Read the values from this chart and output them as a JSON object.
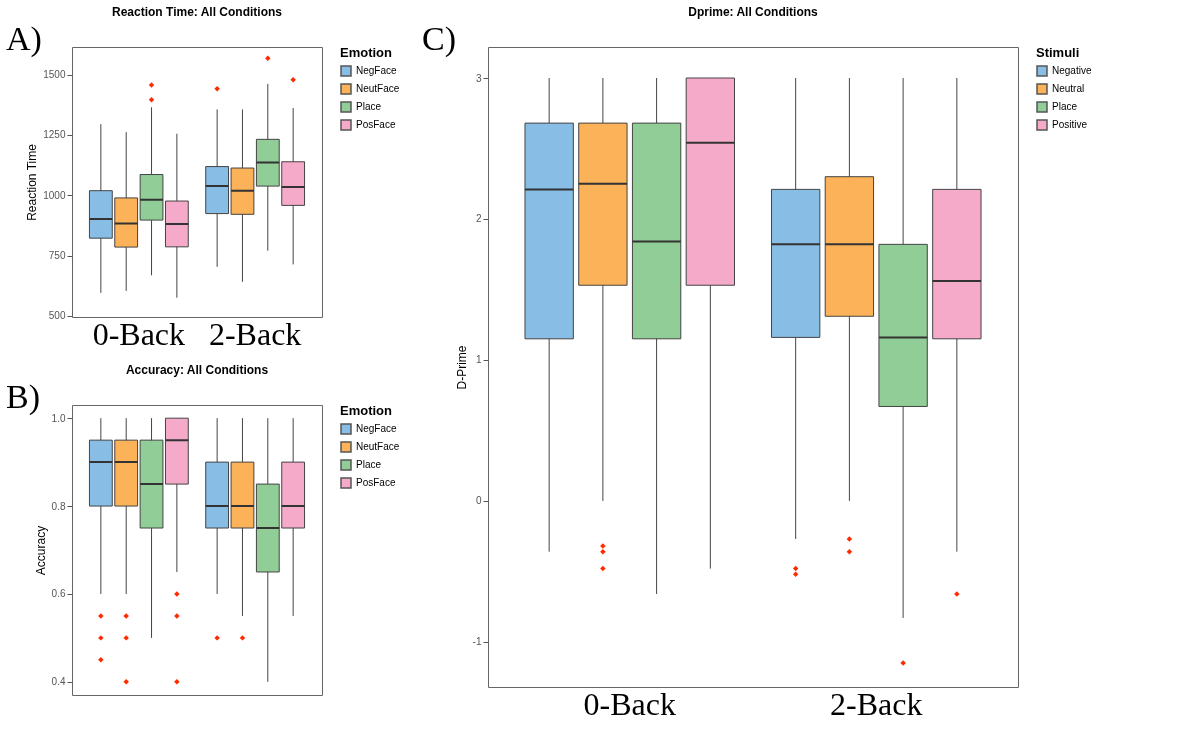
{
  "chart_data": [
    {
      "type": "box",
      "title": "Reaction Time: All Conditions",
      "ylabel": "Reaction Time",
      "legend_title": "Emotion",
      "legend": "right",
      "grid": false,
      "marker": "diamond",
      "annotations": [
        "A)"
      ],
      "categories": [
        "0-Back",
        "2-Back"
      ],
      "ylim": [
        495,
        1615
      ],
      "yticks": [
        500,
        750,
        1000,
        1250,
        1500
      ],
      "series": [
        {
          "name": "NegFace",
          "color": "#88bde6",
          "boxes": [
            {
              "low": 595,
              "q1": 822,
              "median": 902,
              "q3": 1019,
              "high": 1295
            },
            {
              "low": 703,
              "q1": 924,
              "median": 1038,
              "q3": 1119,
              "high": 1356,
              "outliers": [
                1442
              ]
            }
          ]
        },
        {
          "name": "NeutFace",
          "color": "#fbb258",
          "boxes": [
            {
              "low": 603,
              "q1": 785,
              "median": 883,
              "q3": 989,
              "high": 1262
            },
            {
              "low": 641,
              "q1": 921,
              "median": 1019,
              "q3": 1113,
              "high": 1356
            }
          ]
        },
        {
          "name": "Place",
          "color": "#90cd97",
          "boxes": [
            {
              "low": 668,
              "q1": 897,
              "median": 981,
              "q3": 1086,
              "high": 1365,
              "outliers": [
                1396,
                1457
              ]
            },
            {
              "low": 770,
              "q1": 1038,
              "median": 1136,
              "q3": 1232,
              "high": 1462,
              "outliers": [
                1568
              ]
            }
          ]
        },
        {
          "name": "PosFace",
          "color": "#f6aac9",
          "boxes": [
            {
              "low": 575,
              "q1": 786,
              "median": 881,
              "q3": 976,
              "high": 1255
            },
            {
              "low": 713,
              "q1": 958,
              "median": 1034,
              "q3": 1139,
              "high": 1362,
              "outliers": [
                1479
              ]
            }
          ]
        }
      ]
    },
    {
      "type": "box",
      "title": "Accuracy: All Conditions",
      "ylabel": "Accuracy",
      "legend_title": "Emotion",
      "legend": "right",
      "grid": false,
      "marker": "diamond",
      "annotations": [
        "B)"
      ],
      "tick_labels": "y",
      "categories": [
        null,
        null
      ],
      "ylim": [
        0.37,
        1.03
      ],
      "yticks": [
        0.4,
        0.6,
        0.8,
        {
          "value": 1,
          "label": "1.0"
        }
      ],
      "series": [
        {
          "name": "NegFace",
          "color": "#88bde6",
          "boxes": [
            {
              "low": 0.6,
              "q1": 0.8,
              "median": 0.9,
              "q3": 0.95,
              "high": 1,
              "outliers": [
                0.55,
                0.5,
                0.45
              ]
            },
            {
              "low": 0.6,
              "q1": 0.75,
              "median": 0.8,
              "q3": 0.9,
              "high": 1,
              "outliers": [
                0.5
              ]
            }
          ]
        },
        {
          "name": "NeutFace",
          "color": "#fbb258",
          "boxes": [
            {
              "low": 0.6,
              "q1": 0.8,
              "median": 0.9,
              "q3": 0.95,
              "high": 1,
              "outliers": [
                0.55,
                0.5,
                0.4
              ]
            },
            {
              "low": 0.55,
              "q1": 0.75,
              "median": 0.8,
              "q3": 0.9,
              "high": 1,
              "outliers": [
                0.5
              ]
            }
          ]
        },
        {
          "name": "Place",
          "color": "#90cd97",
          "boxes": [
            {
              "low": 0.5,
              "q1": 0.75,
              "median": 0.85,
              "q3": 0.95,
              "high": 1
            },
            {
              "low": 0.4,
              "q1": 0.65,
              "median": 0.75,
              "q3": 0.85,
              "high": 1
            }
          ]
        },
        {
          "name": "PosFace",
          "color": "#f6aac9",
          "boxes": [
            {
              "low": 0.65,
              "q1": 0.85,
              "median": 0.95,
              "q3": 1,
              "high": 1,
              "outliers": [
                0.6,
                0.55,
                0.4
              ]
            },
            {
              "low": 0.55,
              "q1": 0.75,
              "median": 0.8,
              "q3": 0.9,
              "high": 1
            }
          ]
        }
      ]
    },
    {
      "type": "box",
      "title": "Dprime: All Conditions",
      "ylabel": "D-Prime",
      "legend_title": "Stimuli",
      "legend": "right",
      "grid": false,
      "marker": "diamond",
      "annotations": [
        "C)"
      ],
      "categories": [
        "0-Back",
        "2-Back"
      ],
      "ylim": [
        -1.32,
        3.22
      ],
      "yticks": [
        -1,
        0,
        1,
        2,
        3
      ],
      "series": [
        {
          "name": "Negative",
          "color": "#88bde6",
          "boxes": [
            {
              "low": -0.36,
              "q1": 1.15,
              "median": 2.21,
              "q3": 2.68,
              "high": 3
            },
            {
              "low": -0.27,
              "q1": 1.16,
              "median": 1.82,
              "q3": 2.21,
              "high": 3,
              "outliers": [
                -0.48,
                -0.52
              ]
            }
          ]
        },
        {
          "name": "Neutral",
          "color": "#fbb258",
          "boxes": [
            {
              "low": 0,
              "q1": 1.53,
              "median": 2.25,
              "q3": 2.68,
              "high": 3,
              "outliers": [
                -0.32,
                -0.36,
                -0.48
              ]
            },
            {
              "low": 0,
              "q1": 1.31,
              "median": 1.82,
              "q3": 2.3,
              "high": 3,
              "outliers": [
                -0.27,
                -0.36
              ]
            }
          ]
        },
        {
          "name": "Place",
          "color": "#90cd97",
          "boxes": [
            {
              "low": -0.66,
              "q1": 1.15,
              "median": 1.84,
              "q3": 2.68,
              "high": 3
            },
            {
              "low": -0.83,
              "q1": 0.67,
              "median": 1.16,
              "q3": 1.82,
              "high": 3,
              "outliers": [
                -1.15
              ]
            }
          ]
        },
        {
          "name": "Positive",
          "color": "#f6aac9",
          "boxes": [
            {
              "low": -0.48,
              "q1": 1.53,
              "median": 2.54,
              "q3": 3,
              "high": 3
            },
            {
              "low": -0.36,
              "q1": 1.15,
              "median": 1.56,
              "q3": 2.21,
              "high": 3,
              "outliers": [
                -0.66
              ]
            }
          ]
        }
      ]
    }
  ]
}
